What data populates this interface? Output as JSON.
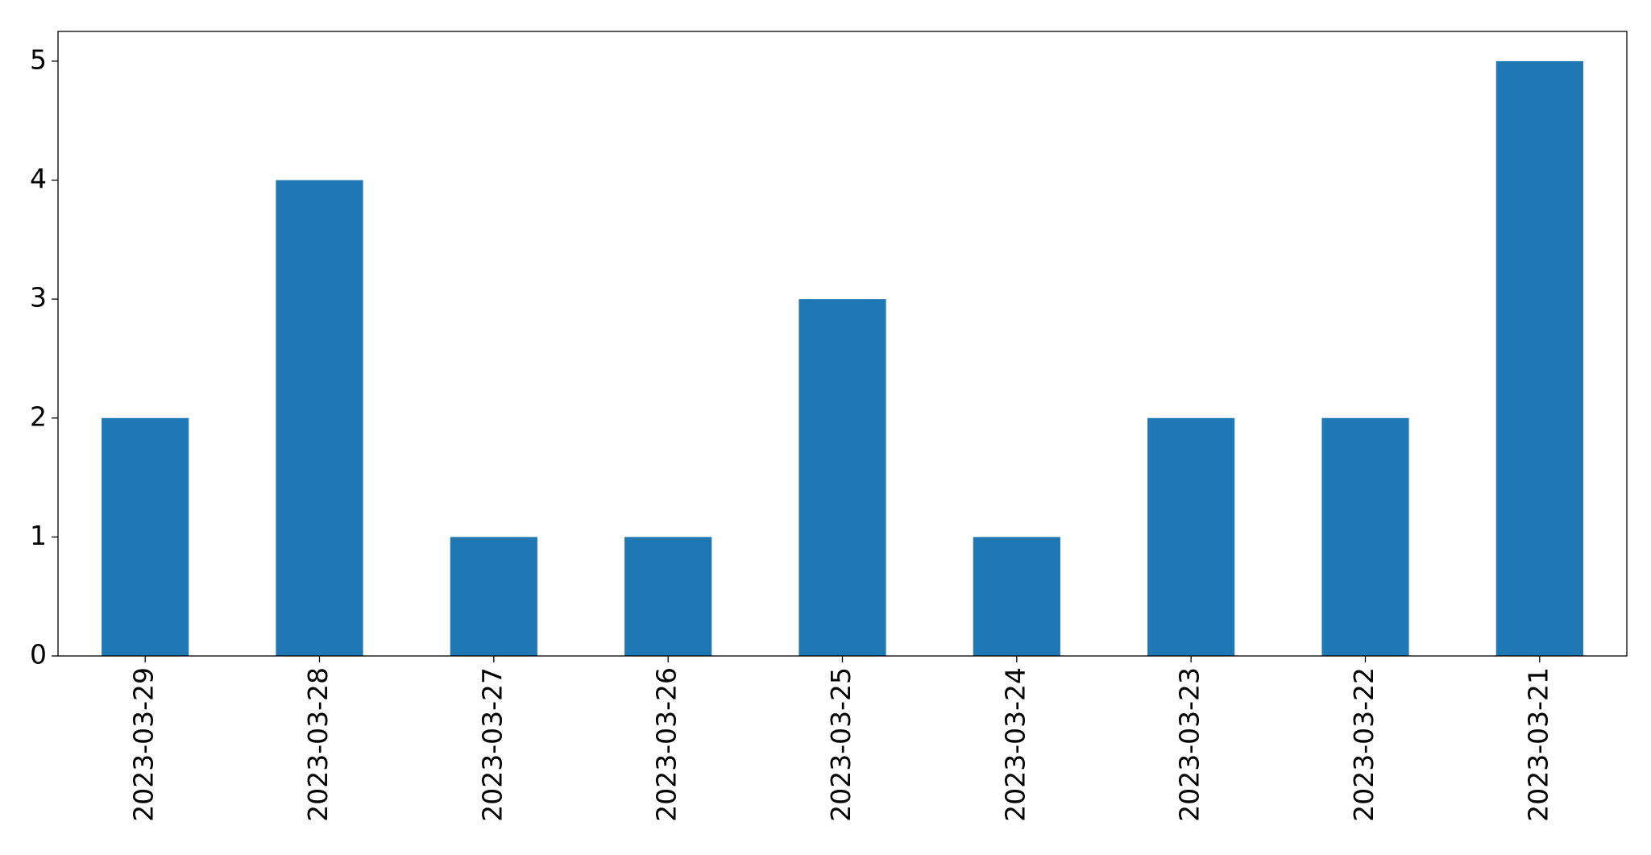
{
  "chart_data": {
    "type": "bar",
    "categories": [
      "2023-03-29",
      "2023-03-28",
      "2023-03-27",
      "2023-03-26",
      "2023-03-25",
      "2023-03-24",
      "2023-03-23",
      "2023-03-22",
      "2023-03-21"
    ],
    "values": [
      2,
      4,
      1,
      1,
      3,
      1,
      2,
      2,
      5
    ],
    "color": "#1f77b4",
    "ylim": [
      0,
      5.25
    ],
    "yticks": [
      0,
      1,
      2,
      3,
      4,
      5
    ],
    "grid": false
  }
}
